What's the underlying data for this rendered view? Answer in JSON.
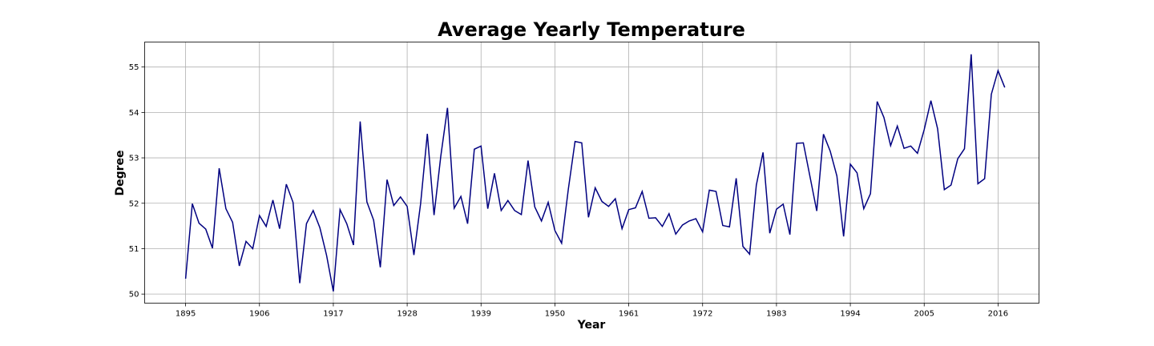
{
  "chart_data": {
    "type": "line",
    "title": "Average Yearly Temperature",
    "xlabel": "Year",
    "ylabel": "Degree",
    "xlim": [
      1888.9,
      2022.1
    ],
    "ylim": [
      49.8,
      55.55
    ],
    "xticks": [
      1895,
      1906,
      1917,
      1928,
      1939,
      1950,
      1961,
      1972,
      1983,
      1994,
      2005,
      2016
    ],
    "yticks": [
      50,
      51,
      52,
      53,
      54,
      55
    ],
    "grid": true,
    "line_color": "#000080",
    "series": [
      {
        "x": [
          1895,
          1896,
          1897,
          1898,
          1899,
          1900,
          1901,
          1902,
          1903,
          1904,
          1905,
          1906,
          1907,
          1908,
          1909,
          1910,
          1911,
          1912,
          1913,
          1914,
          1915,
          1916,
          1917,
          1918,
          1919,
          1920,
          1921,
          1922,
          1923,
          1924,
          1925,
          1926,
          1927,
          1928,
          1929,
          1930,
          1931,
          1932,
          1933,
          1934,
          1935,
          1936,
          1937,
          1938,
          1939,
          1940,
          1941,
          1942,
          1943,
          1944,
          1945,
          1946,
          1947,
          1948,
          1949,
          1950,
          1951,
          1952,
          1953,
          1954,
          1955,
          1956,
          1957,
          1958,
          1959,
          1960,
          1961,
          1962,
          1963,
          1964,
          1965,
          1966,
          1967,
          1968,
          1969,
          1970,
          1971,
          1972,
          1973,
          1974,
          1975,
          1976,
          1977,
          1978,
          1979,
          1980,
          1981,
          1982,
          1983,
          1984,
          1985,
          1986,
          1987,
          1988,
          1989,
          1990,
          1991,
          1992,
          1993,
          1994,
          1995,
          1996,
          1997,
          1998,
          1999,
          2000,
          2001,
          2002,
          2003,
          2004,
          2005,
          2006,
          2007,
          2008,
          2009,
          2010,
          2011,
          2012,
          2013,
          2014,
          2015,
          2016,
          2017
        ],
        "values": [
          50.34,
          51.99,
          51.56,
          51.43,
          51.01,
          52.77,
          51.88,
          51.58,
          50.62,
          51.16,
          51.0,
          51.73,
          51.49,
          52.07,
          51.44,
          52.42,
          52.02,
          50.24,
          51.55,
          51.84,
          51.46,
          50.85,
          50.06,
          51.86,
          51.55,
          51.08,
          53.8,
          52.03,
          51.63,
          50.59,
          52.52,
          51.95,
          52.14,
          51.93,
          50.86,
          51.99,
          53.53,
          51.74,
          53.03,
          54.1,
          51.89,
          52.15,
          51.55,
          53.19,
          53.26,
          51.88,
          52.66,
          51.84,
          52.06,
          51.84,
          51.75,
          52.94,
          51.92,
          51.61,
          52.02,
          51.4,
          51.12,
          52.31,
          53.36,
          53.33,
          51.69,
          52.34,
          52.04,
          51.93,
          52.1,
          51.44,
          51.86,
          51.9,
          52.26,
          51.67,
          51.68,
          51.49,
          51.77,
          51.32,
          51.52,
          51.61,
          51.66,
          51.37,
          52.29,
          52.26,
          51.51,
          51.48,
          52.55,
          51.05,
          50.88,
          52.4,
          53.12,
          51.34,
          51.87,
          51.98,
          51.31,
          53.32,
          53.33,
          52.58,
          51.83,
          53.52,
          53.15,
          52.6,
          51.27,
          52.86,
          52.67,
          51.88,
          52.21,
          54.24,
          53.89,
          53.27,
          53.7,
          53.21,
          53.26,
          53.1,
          53.62,
          54.26,
          53.64,
          52.3,
          52.4,
          52.98,
          53.2,
          55.28,
          52.43,
          52.54,
          54.4,
          54.92,
          54.55
        ]
      }
    ]
  }
}
